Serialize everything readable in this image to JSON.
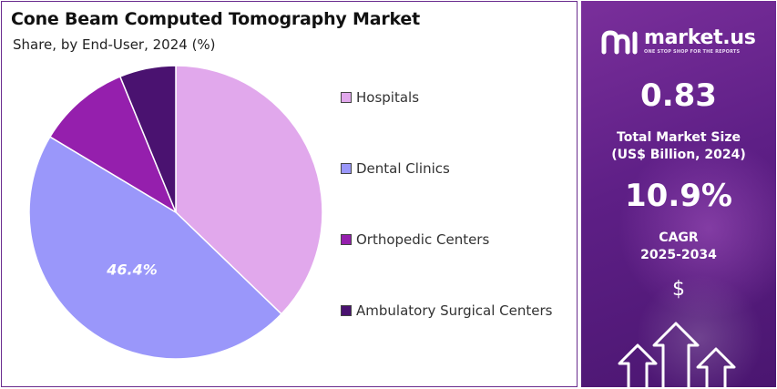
{
  "chart_data": {
    "type": "pie",
    "title": "Cone Beam Computed Tomography Market",
    "subtitle": "Share, by End-User, 2024 (%)",
    "categories": [
      "Hospitals",
      "Dental Clinics",
      "Orthopedic Centers",
      "Ambulatory Surgical Centers"
    ],
    "values": [
      37.2,
      46.4,
      10.2,
      6.2
    ],
    "colors": [
      "#e1a8ec",
      "#9a97fa",
      "#951fad",
      "#4a1270"
    ],
    "data_labels": [
      "",
      "46.4%",
      "",
      ""
    ],
    "legend_position": "right",
    "start_angle_deg": 0,
    "direction": "clockwise"
  },
  "side": {
    "brand_name": "market.us",
    "brand_tagline": "ONE STOP SHOP FOR THE REPORTS",
    "market_size_value": "0.83",
    "market_size_label_1": "Total Market Size",
    "market_size_label_2": "(US$ Billion, 2024)",
    "cagr_value": "10.9%",
    "cagr_label_1": "CAGR",
    "cagr_label_2": "2025-2034",
    "dollar_symbol": "$",
    "icons": [
      "market-us-logo-icon",
      "dollar-icon",
      "growth-arrows-icon"
    ],
    "background_color": "#5e1f86"
  }
}
